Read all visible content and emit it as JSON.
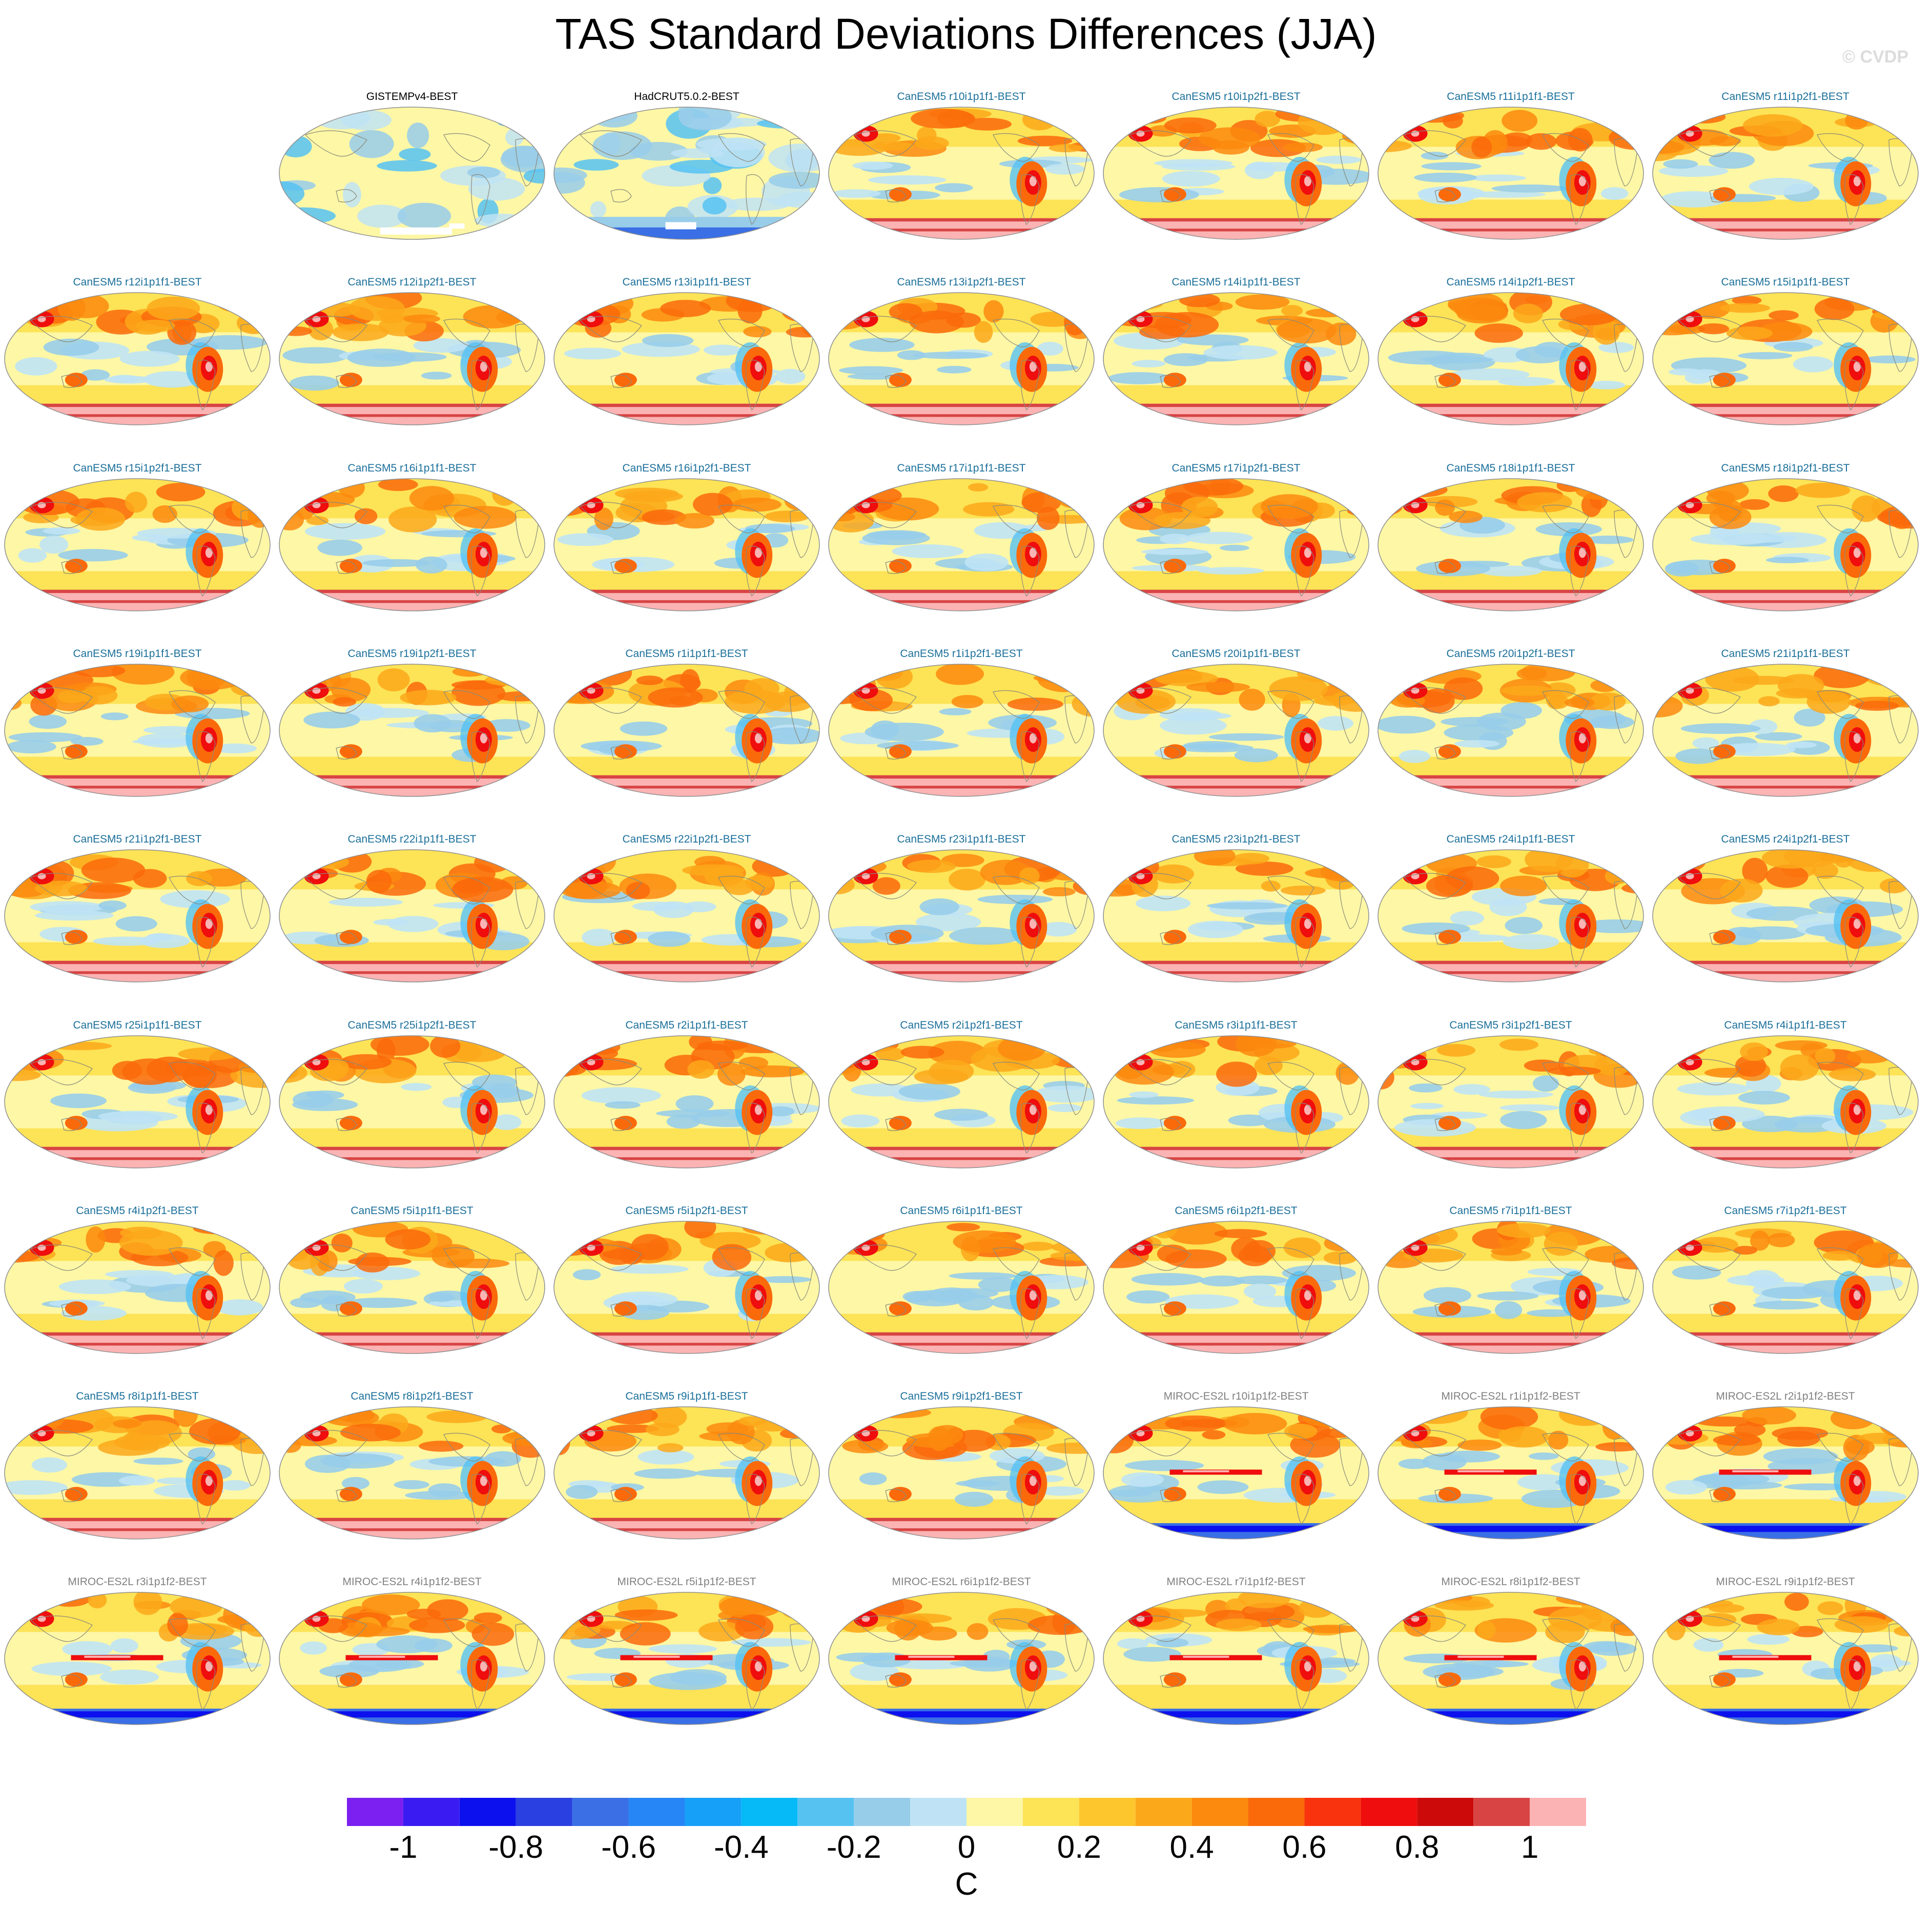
{
  "title": "TAS Standard Deviations Differences (JJA)",
  "watermark": "© CVDP",
  "colors": {
    "obs_label": "#000000",
    "canesm5_label": "#1a6f9a",
    "miroc_label": "#808080",
    "coastline": "#8a8a7a",
    "outline": "#8f8f8f"
  },
  "chart_data": {
    "type": "heatmap",
    "projection": "Robinson (global maps)",
    "season": "JJA",
    "layout": {
      "columns": 7,
      "rows": 9,
      "first_row_offset": 1
    },
    "panels": [
      {
        "label": "GISTEMPv4-BEST",
        "group": "obs"
      },
      {
        "label": "HadCRUT5.0.2-BEST",
        "group": "obs"
      },
      {
        "label": "CanESM5 r10i1p1f1-BEST",
        "group": "canesm5"
      },
      {
        "label": "CanESM5 r10i1p2f1-BEST",
        "group": "canesm5"
      },
      {
        "label": "CanESM5 r11i1p1f1-BEST",
        "group": "canesm5"
      },
      {
        "label": "CanESM5 r11i1p2f1-BEST",
        "group": "canesm5"
      },
      {
        "label": "CanESM5 r12i1p1f1-BEST",
        "group": "canesm5"
      },
      {
        "label": "CanESM5 r12i1p2f1-BEST",
        "group": "canesm5"
      },
      {
        "label": "CanESM5 r13i1p1f1-BEST",
        "group": "canesm5"
      },
      {
        "label": "CanESM5 r13i1p2f1-BEST",
        "group": "canesm5"
      },
      {
        "label": "CanESM5 r14i1p1f1-BEST",
        "group": "canesm5"
      },
      {
        "label": "CanESM5 r14i1p2f1-BEST",
        "group": "canesm5"
      },
      {
        "label": "CanESM5 r15i1p1f1-BEST",
        "group": "canesm5"
      },
      {
        "label": "CanESM5 r15i1p2f1-BEST",
        "group": "canesm5"
      },
      {
        "label": "CanESM5 r16i1p1f1-BEST",
        "group": "canesm5"
      },
      {
        "label": "CanESM5 r16i1p2f1-BEST",
        "group": "canesm5"
      },
      {
        "label": "CanESM5 r17i1p1f1-BEST",
        "group": "canesm5"
      },
      {
        "label": "CanESM5 r17i1p2f1-BEST",
        "group": "canesm5"
      },
      {
        "label": "CanESM5 r18i1p1f1-BEST",
        "group": "canesm5"
      },
      {
        "label": "CanESM5 r18i1p2f1-BEST",
        "group": "canesm5"
      },
      {
        "label": "CanESM5 r19i1p1f1-BEST",
        "group": "canesm5"
      },
      {
        "label": "CanESM5 r19i1p2f1-BEST",
        "group": "canesm5"
      },
      {
        "label": "CanESM5 r1i1p1f1-BEST",
        "group": "canesm5"
      },
      {
        "label": "CanESM5 r1i1p2f1-BEST",
        "group": "canesm5"
      },
      {
        "label": "CanESM5 r20i1p1f1-BEST",
        "group": "canesm5"
      },
      {
        "label": "CanESM5 r20i1p2f1-BEST",
        "group": "canesm5"
      },
      {
        "label": "CanESM5 r21i1p1f1-BEST",
        "group": "canesm5"
      },
      {
        "label": "CanESM5 r21i1p2f1-BEST",
        "group": "canesm5"
      },
      {
        "label": "CanESM5 r22i1p1f1-BEST",
        "group": "canesm5"
      },
      {
        "label": "CanESM5 r22i1p2f1-BEST",
        "group": "canesm5"
      },
      {
        "label": "CanESM5 r23i1p1f1-BEST",
        "group": "canesm5"
      },
      {
        "label": "CanESM5 r23i1p2f1-BEST",
        "group": "canesm5"
      },
      {
        "label": "CanESM5 r24i1p1f1-BEST",
        "group": "canesm5"
      },
      {
        "label": "CanESM5 r24i1p2f1-BEST",
        "group": "canesm5"
      },
      {
        "label": "CanESM5 r25i1p1f1-BEST",
        "group": "canesm5"
      },
      {
        "label": "CanESM5 r25i1p2f1-BEST",
        "group": "canesm5"
      },
      {
        "label": "CanESM5 r2i1p1f1-BEST",
        "group": "canesm5"
      },
      {
        "label": "CanESM5 r2i1p2f1-BEST",
        "group": "canesm5"
      },
      {
        "label": "CanESM5 r3i1p1f1-BEST",
        "group": "canesm5"
      },
      {
        "label": "CanESM5 r3i1p2f1-BEST",
        "group": "canesm5"
      },
      {
        "label": "CanESM5 r4i1p1f1-BEST",
        "group": "canesm5"
      },
      {
        "label": "CanESM5 r4i1p2f1-BEST",
        "group": "canesm5"
      },
      {
        "label": "CanESM5 r5i1p1f1-BEST",
        "group": "canesm5"
      },
      {
        "label": "CanESM5 r5i1p2f1-BEST",
        "group": "canesm5"
      },
      {
        "label": "CanESM5 r6i1p1f1-BEST",
        "group": "canesm5"
      },
      {
        "label": "CanESM5 r6i1p2f1-BEST",
        "group": "canesm5"
      },
      {
        "label": "CanESM5 r7i1p1f1-BEST",
        "group": "canesm5"
      },
      {
        "label": "CanESM5 r7i1p2f1-BEST",
        "group": "canesm5"
      },
      {
        "label": "CanESM5 r8i1p1f1-BEST",
        "group": "canesm5"
      },
      {
        "label": "CanESM5 r8i1p2f1-BEST",
        "group": "canesm5"
      },
      {
        "label": "CanESM5 r9i1p1f1-BEST",
        "group": "canesm5"
      },
      {
        "label": "CanESM5 r9i1p2f1-BEST",
        "group": "canesm5"
      },
      {
        "label": "MIROC-ES2L r10i1p1f2-BEST",
        "group": "miroc"
      },
      {
        "label": "MIROC-ES2L r1i1p1f2-BEST",
        "group": "miroc"
      },
      {
        "label": "MIROC-ES2L r2i1p1f2-BEST",
        "group": "miroc"
      },
      {
        "label": "MIROC-ES2L r3i1p1f2-BEST",
        "group": "miroc"
      },
      {
        "label": "MIROC-ES2L r4i1p1f2-BEST",
        "group": "miroc"
      },
      {
        "label": "MIROC-ES2L r5i1p1f2-BEST",
        "group": "miroc"
      },
      {
        "label": "MIROC-ES2L r6i1p1f2-BEST",
        "group": "miroc"
      },
      {
        "label": "MIROC-ES2L r7i1p1f2-BEST",
        "group": "miroc"
      },
      {
        "label": "MIROC-ES2L r8i1p1f2-BEST",
        "group": "miroc"
      },
      {
        "label": "MIROC-ES2L r9i1p1f2-BEST",
        "group": "miroc"
      }
    ],
    "colorbar": {
      "unit": "C",
      "levels": [
        -1.1,
        -1.0,
        -0.9,
        -0.8,
        -0.7,
        -0.6,
        -0.5,
        -0.4,
        -0.3,
        -0.2,
        -0.1,
        0.0,
        0.1,
        0.2,
        0.3,
        0.4,
        0.5,
        0.6,
        0.7,
        0.8,
        0.9,
        1.0,
        1.1
      ],
      "colors": [
        "#7b20f0",
        "#3a1cf2",
        "#0c10ee",
        "#2a40e0",
        "#3a6fe6",
        "#2686f5",
        "#16a0f8",
        "#06baf8",
        "#56c2f2",
        "#98cdea",
        "#bfe3f5",
        "#fdf7a6",
        "#fde356",
        "#fcc62c",
        "#fba81a",
        "#fb8a0e",
        "#fa6a0b",
        "#f8330e",
        "#ef0d0d",
        "#cc0a0a",
        "#d84444",
        "#fbb3b3"
      ],
      "tick_labels": [
        "-1",
        "-0.8",
        "-0.6",
        "-0.4",
        "-0.2",
        "0",
        "0.2",
        "0.4",
        "0.6",
        "0.8",
        "1"
      ],
      "tick_values": [
        -1,
        -0.8,
        -0.6,
        -0.4,
        -0.2,
        0,
        0.2,
        0.4,
        0.6,
        0.8,
        1
      ]
    }
  }
}
